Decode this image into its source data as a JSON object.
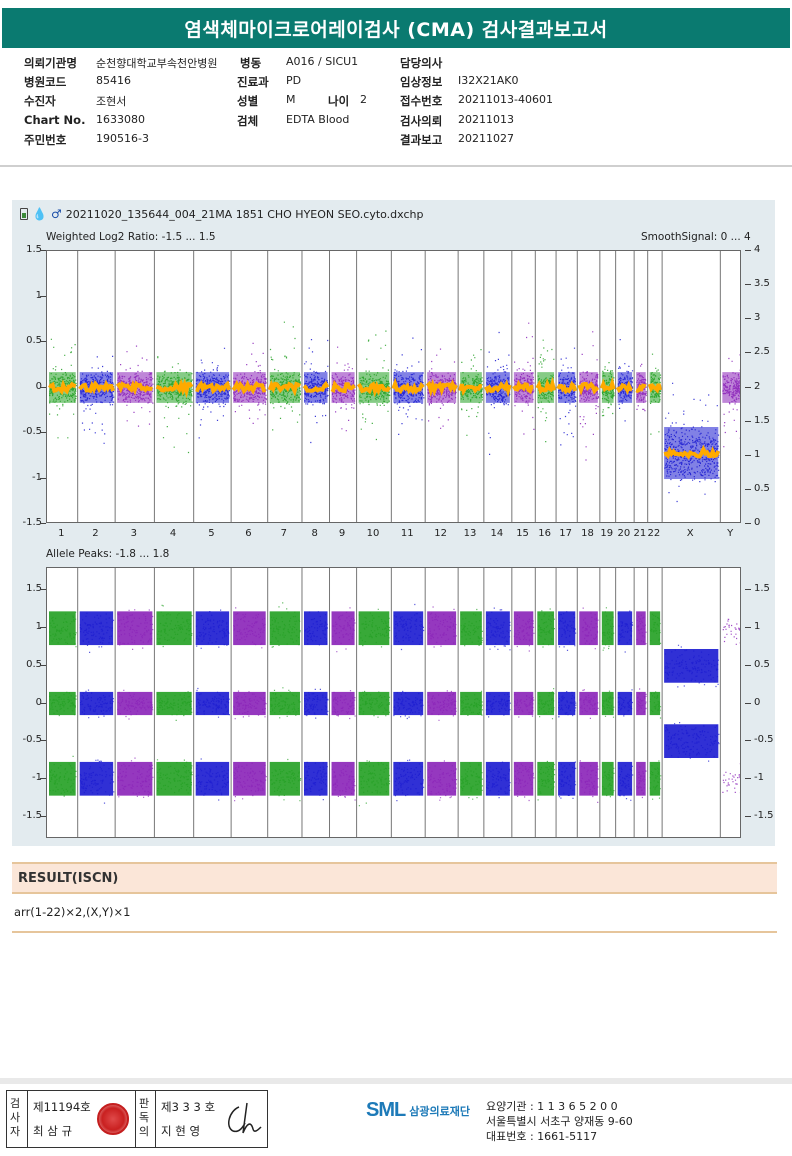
{
  "title": "염색체마이크로어레이검사 (CMA) 검사결과보고서",
  "info": {
    "col1": [
      {
        "label": "의뢰기관명",
        "value": "순천향대학교부속천안병원"
      },
      {
        "label": "병원코드",
        "value": "85416"
      },
      {
        "label": "수진자",
        "value": "조현서"
      },
      {
        "label": "Chart No.",
        "value": "1633080"
      },
      {
        "label": "주민번호",
        "value": "190516-3"
      }
    ],
    "col2": [
      {
        "label": "병동",
        "value": "A016 / SICU1"
      },
      {
        "label": "진료과",
        "value": "PD"
      },
      {
        "label": "성별",
        "value": "M"
      },
      {
        "label": "검체",
        "value": "EDTA Blood"
      }
    ],
    "age": {
      "label": "나이",
      "value": "2"
    },
    "col3": [
      {
        "label": "담당의사",
        "value": ""
      },
      {
        "label": "임상정보",
        "value": "I32X21AK0"
      },
      {
        "label": "접수번호",
        "value": "20211013-40601"
      },
      {
        "label": "검사의뢰",
        "value": "20211013"
      },
      {
        "label": "결과보고",
        "value": "20211027"
      }
    ]
  },
  "figure": {
    "filename": "20211020_135644_004_21MA 1851 CHO HYEON SEO.cyto.dxchp",
    "icons": [
      "battery-icon",
      "drop-icon",
      "male-icon"
    ],
    "plot1": {
      "left_label": "Weighted Log2 Ratio: -1.5 ... 1.5",
      "right_label": "SmoothSignal: 0 ... 4",
      "y_ticks": [
        "1.5",
        "1",
        "0.5",
        "0",
        "-0.5",
        "-1",
        "-1.5"
      ],
      "y_ticks_right": [
        "4",
        "3.5",
        "3",
        "2.5",
        "2",
        "1.5",
        "1",
        "0.5",
        "0"
      ]
    },
    "plot2": {
      "left_label": "Allele Peaks: -1.8 ... 1.8",
      "y_ticks": [
        "1.5",
        "1",
        "0.5",
        "0",
        "-0.5",
        "-1",
        "-1.5"
      ],
      "y_ticks_right": [
        "1.5",
        "1",
        "0.5",
        "0",
        "-0.5",
        "-1",
        "-1.5"
      ]
    },
    "chromosomes": [
      "1",
      "2",
      "3",
      "4",
      "5",
      "6",
      "7",
      "8",
      "9",
      "10",
      "11",
      "12",
      "13",
      "14",
      "15",
      "16",
      "17",
      "18",
      "19",
      "20",
      "21",
      "22",
      "X",
      "Y"
    ],
    "colors": {
      "green": "#22a022",
      "blue": "#1a1ad0",
      "purple": "#8a22b8",
      "orange": "#ffaa00"
    }
  },
  "result": {
    "heading": "RESULT(ISCN)",
    "value": "arr(1-22)×2,(X,Y)×1"
  },
  "footer": {
    "sign1_vert": "검사자",
    "sign1_no": "제11194호",
    "sign1_name": "최 삼 규",
    "sign2_vert": "판독의",
    "sign2_no": "제3 3 3 호",
    "sign2_name": "지 현 영",
    "logo_mark": "SML",
    "logo_name": "삼광의료재단",
    "org_lines": [
      "요양기관 : 1 1 3 6 5 2 0 0",
      "서울특별시 서초구 양재동 9-60",
      "대표번호 : 1661-5117"
    ]
  }
}
